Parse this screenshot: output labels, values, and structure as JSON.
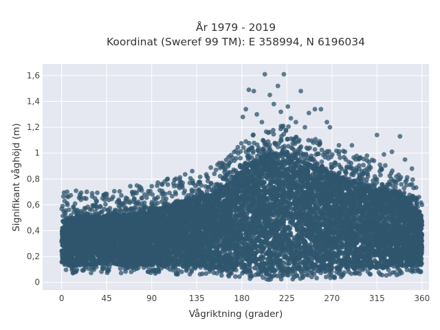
{
  "chart_data": {
    "type": "scatter",
    "title_line1": "År 1979 - 2019",
    "title_line2": "Koordinat (Sweref 99 TM): E 358994, N 6196034",
    "xlabel": "Vågriktning (grader)",
    "ylabel": "Signifikant våghöjd (m)",
    "xlim": [
      -19,
      367
    ],
    "ylim": [
      -0.06,
      1.69
    ],
    "x_ticks": [
      0,
      45,
      90,
      135,
      180,
      225,
      270,
      315,
      360
    ],
    "x_tick_labels": [
      "0",
      "45",
      "90",
      "135",
      "180",
      "225",
      "270",
      "315",
      "360"
    ],
    "y_ticks": [
      0,
      0.2,
      0.4,
      0.6,
      0.8,
      1,
      1.2,
      1.4,
      1.6
    ],
    "y_tick_labels": [
      "0",
      "0,2",
      "0,4",
      "0,6",
      "0,8",
      "1",
      "1,2",
      "1,4",
      "1,6"
    ],
    "grid": true,
    "marker_color": "#2f566d",
    "plot_bg": "#e5e8f0",
    "envelope": {
      "direction": [
        0,
        15,
        30,
        45,
        60,
        75,
        90,
        105,
        120,
        135,
        150,
        160,
        170,
        180,
        190,
        200,
        210,
        220,
        225,
        230,
        240,
        250,
        260,
        270,
        280,
        290,
        300,
        315,
        330,
        345,
        355,
        360
      ],
      "upper": [
        0.48,
        0.5,
        0.5,
        0.52,
        0.52,
        0.53,
        0.56,
        0.58,
        0.62,
        0.65,
        0.68,
        0.72,
        0.78,
        0.88,
        0.92,
        0.95,
        0.97,
        1.0,
        1.0,
        0.98,
        0.93,
        0.9,
        0.87,
        0.84,
        0.8,
        0.78,
        0.75,
        0.72,
        0.7,
        0.65,
        0.55,
        0.48
      ],
      "lower": [
        0.07,
        0.07,
        0.07,
        0.07,
        0.07,
        0.07,
        0.07,
        0.06,
        0.06,
        0.06,
        0.05,
        0.04,
        0.03,
        0.02,
        0.02,
        0.02,
        0.02,
        0.02,
        0.02,
        0.02,
        0.02,
        0.03,
        0.03,
        0.03,
        0.04,
        0.04,
        0.05,
        0.05,
        0.05,
        0.06,
        0.07,
        0.07
      ]
    },
    "outliers": [
      {
        "x": 3,
        "y": 0.63
      },
      {
        "x": 35,
        "y": 0.63
      },
      {
        "x": 45,
        "y": 0.66
      },
      {
        "x": 57,
        "y": 0.59
      },
      {
        "x": 80,
        "y": 0.65
      },
      {
        "x": 100,
        "y": 0.76
      },
      {
        "x": 128,
        "y": 0.77
      },
      {
        "x": 145,
        "y": 0.82
      },
      {
        "x": 181,
        "y": 1.28
      },
      {
        "x": 184,
        "y": 1.34
      },
      {
        "x": 187,
        "y": 1.49
      },
      {
        "x": 192,
        "y": 1.48
      },
      {
        "x": 195,
        "y": 1.3
      },
      {
        "x": 200,
        "y": 1.24
      },
      {
        "x": 203,
        "y": 1.61
      },
      {
        "x": 208,
        "y": 1.45
      },
      {
        "x": 212,
        "y": 1.38
      },
      {
        "x": 216,
        "y": 1.52
      },
      {
        "x": 219,
        "y": 1.32
      },
      {
        "x": 222,
        "y": 1.61
      },
      {
        "x": 226,
        "y": 1.36
      },
      {
        "x": 229,
        "y": 1.27
      },
      {
        "x": 234,
        "y": 1.24
      },
      {
        "x": 239,
        "y": 1.48
      },
      {
        "x": 243,
        "y": 1.2
      },
      {
        "x": 247,
        "y": 1.31
      },
      {
        "x": 253,
        "y": 1.34
      },
      {
        "x": 259,
        "y": 1.34
      },
      {
        "x": 265,
        "y": 1.24
      },
      {
        "x": 268,
        "y": 1.2
      },
      {
        "x": 277,
        "y": 1.06
      },
      {
        "x": 283,
        "y": 1.01
      },
      {
        "x": 290,
        "y": 1.06
      },
      {
        "x": 298,
        "y": 0.96
      },
      {
        "x": 305,
        "y": 0.98
      },
      {
        "x": 315,
        "y": 1.14
      },
      {
        "x": 322,
        "y": 0.99
      },
      {
        "x": 330,
        "y": 1.01
      },
      {
        "x": 338,
        "y": 1.13
      },
      {
        "x": 343,
        "y": 0.95
      },
      {
        "x": 350,
        "y": 0.88
      },
      {
        "x": 357,
        "y": 0.66
      },
      {
        "x": 360,
        "y": 0.6
      }
    ]
  }
}
